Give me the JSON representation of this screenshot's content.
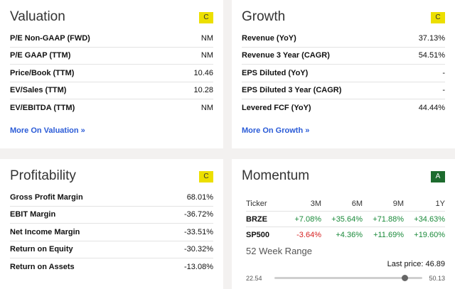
{
  "valuation": {
    "title": "Valuation",
    "grade": "C",
    "rows": [
      {
        "label": "P/E Non-GAAP (FWD)",
        "value": "NM"
      },
      {
        "label": "P/E GAAP (TTM)",
        "value": "NM"
      },
      {
        "label": "Price/Book (TTM)",
        "value": "10.46"
      },
      {
        "label": "EV/Sales (TTM)",
        "value": "10.28"
      },
      {
        "label": "EV/EBITDA (TTM)",
        "value": "NM"
      }
    ],
    "more": "More On Valuation »"
  },
  "growth": {
    "title": "Growth",
    "grade": "C",
    "rows": [
      {
        "label": "Revenue (YoY)",
        "value": "37.13%"
      },
      {
        "label": "Revenue 3 Year (CAGR)",
        "value": "54.51%"
      },
      {
        "label": "EPS Diluted (YoY)",
        "value": "-"
      },
      {
        "label": "EPS Diluted 3 Year (CAGR)",
        "value": "-"
      },
      {
        "label": "Levered FCF (YoY)",
        "value": "44.44%"
      }
    ],
    "more": "More On Growth »"
  },
  "profitability": {
    "title": "Profitability",
    "grade": "C",
    "rows": [
      {
        "label": "Gross Profit Margin",
        "value": "68.01%"
      },
      {
        "label": "EBIT Margin",
        "value": "-36.72%"
      },
      {
        "label": "Net Income Margin",
        "value": "-33.51%"
      },
      {
        "label": "Return on Equity",
        "value": "-30.32%"
      },
      {
        "label": "Return on Assets",
        "value": "-13.08%"
      }
    ]
  },
  "momentum": {
    "title": "Momentum",
    "grade": "A",
    "headers": [
      "Ticker",
      "3M",
      "6M",
      "9M",
      "1Y"
    ],
    "rows": [
      {
        "ticker": "BRZE",
        "values": [
          "+7.08%",
          "+35.64%",
          "+71.88%",
          "+34.63%"
        ]
      },
      {
        "ticker": "SP500",
        "values": [
          "-3.64%",
          "+4.36%",
          "+11.69%",
          "+19.60%"
        ]
      }
    ],
    "range_title": "52 Week Range",
    "last_price": "Last price: 46.89",
    "low": "22.54",
    "high": "50.13",
    "position_fraction": 0.88
  },
  "colors": {
    "grade_yellow": "#ecdf00",
    "grade_green": "#1d6b2e",
    "link": "#2a5bd7",
    "positive": "#1a8a3a",
    "negative": "#d62020"
  }
}
